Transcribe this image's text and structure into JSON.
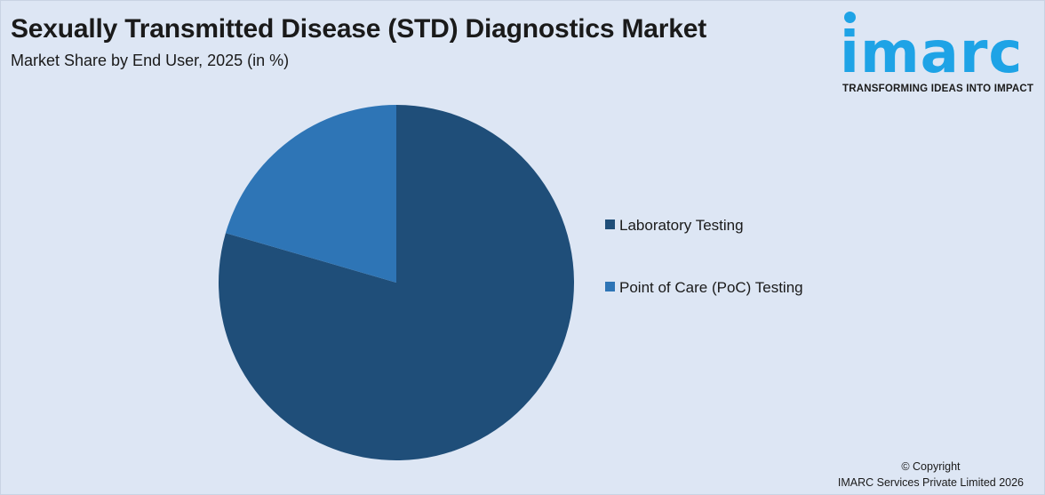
{
  "header": {
    "title": "Sexually Transmitted Disease (STD) Diagnostics Market",
    "subtitle": "Market Share by End User, 2025 (in %)"
  },
  "logo": {
    "word": "imarc",
    "tagline": "TRANSFORMING IDEAS INTO IMPACT",
    "color": "#1ea3e6"
  },
  "footer": {
    "copyright_line1": "© Copyright",
    "copyright_line2": "IMARC Services Private Limited 2026"
  },
  "chart_data": {
    "type": "pie",
    "title": "Sexually Transmitted Disease (STD) Diagnostics Market",
    "subtitle": "Market Share by End User, 2025 (in %)",
    "legend_position": "right",
    "start_angle_deg": 0,
    "direction": "clockwise",
    "slices": [
      {
        "label": "Laboratory Testing",
        "value": 79.5,
        "color": "#1f4e79"
      },
      {
        "label": "Point of Care (PoC) Testing",
        "value": 20.5,
        "color": "#2e75b6"
      }
    ]
  }
}
